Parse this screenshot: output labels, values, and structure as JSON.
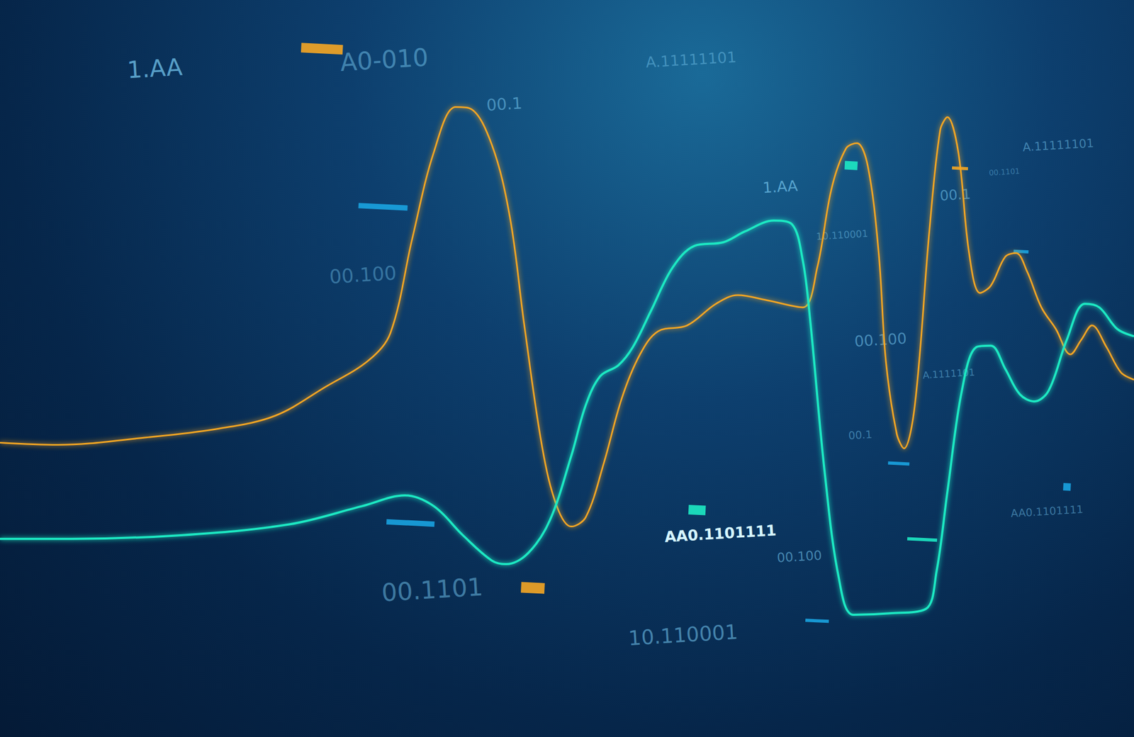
{
  "chart_data": {
    "type": "line",
    "xlim": [
      0,
      1568
    ],
    "ylim": [
      0,
      1019
    ],
    "xticks": [
      0,
      1568
    ],
    "yticks": [
      0,
      1019
    ],
    "grid": false,
    "tick_labels": false,
    "series": [
      {
        "color": "#f5a623",
        "x": [
          0,
          80,
          200,
          300,
          380,
          450,
          510,
          540,
          570,
          600,
          630,
          650,
          680,
          705,
          725,
          750,
          770,
          790,
          810,
          835,
          860,
          885,
          910,
          950,
          990,
          1020,
          1060,
          1110,
          1130,
          1150,
          1170,
          1185,
          1200,
          1215,
          1225,
          1240,
          1250,
          1265,
          1285,
          1300,
          1310,
          1325,
          1340,
          1355,
          1370,
          1390,
          1405,
          1420,
          1440,
          1460,
          1480,
          1495,
          1510,
          1530,
          1550,
          1568
        ],
        "values": [
          407,
          404,
          414,
          426,
          444,
          484,
          521,
          559,
          689,
          809,
          871,
          869,
          819,
          719,
          569,
          399,
          319,
          291,
          304,
          379,
          469,
          529,
          561,
          569,
          599,
          611,
          604,
          594,
          649,
          759,
          814,
          821,
          789,
          669,
          519,
          419,
          399,
          459,
          699,
          839,
          857,
          809,
          669,
          614,
          624,
          664,
          669,
          644,
          594,
          564,
          529,
          549,
          569,
          539,
          504,
          494
        ]
      },
      {
        "color": "#1de9c3",
        "x": [
          0,
          100,
          250,
          400,
          500,
          560,
          600,
          640,
          680,
          700,
          730,
          760,
          790,
          810,
          830,
          855,
          875,
          900,
          930,
          960,
          1000,
          1030,
          1070,
          1095,
          1110,
          1120,
          1140,
          1160,
          1180,
          1230,
          1280,
          1295,
          1310,
          1330,
          1350,
          1370,
          1390,
          1410,
          1430,
          1450,
          1475,
          1500,
          1520,
          1545,
          1568
        ],
        "values": [
          274,
          274,
          279,
          294,
          319,
          334,
          319,
          279,
          244,
          239,
          254,
          299,
          389,
          459,
          499,
          514,
          539,
          589,
          649,
          679,
          684,
          699,
          714,
          709,
          659,
          579,
          369,
          219,
          169,
          171,
          177,
          229,
          339,
          479,
          539,
          541,
          509,
          474,
          464,
          479,
          549,
          599,
          594,
          564,
          554
        ]
      }
    ],
    "annotations": [
      "1.AA",
      "A0-010",
      "00.1",
      "A.11111101",
      "00.100",
      "1.AA",
      "10.110001",
      "00.1",
      "A.11111101",
      "00.1101",
      "00.100",
      "A.1111101",
      "00.1",
      "AA0.1101111",
      "00.100",
      "00.1101",
      "10.110001",
      "AA0.1101111"
    ]
  }
}
